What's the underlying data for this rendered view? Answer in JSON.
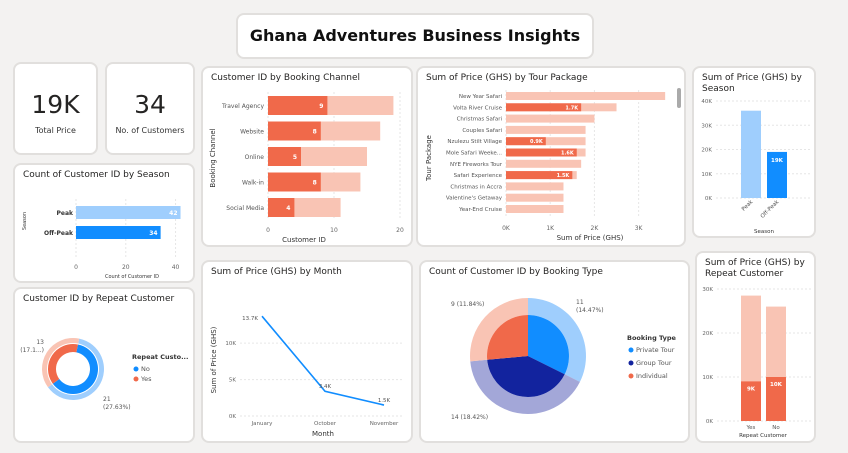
{
  "header": {
    "title": "Ghana Adventures Business Insights"
  },
  "kpis": [
    {
      "value": "19K",
      "label": "Total Price"
    },
    {
      "value": "34",
      "label": "No. of Customers"
    }
  ],
  "colors": {
    "orange": "#f0694a",
    "orange_light": "#f9c4b4",
    "blue": "#118dff",
    "blue_light": "#9fcefd",
    "navy": "#12239e",
    "navy_light": "#a3a7d8"
  },
  "chart_data": [
    {
      "id": "season_count",
      "type": "bar",
      "orientation": "horizontal",
      "title": "Count of Customer ID by Season",
      "categories": [
        "Peak",
        "Off-Peak"
      ],
      "values": [
        42,
        34
      ],
      "xlabel": "Count of Customer ID",
      "ylabel": "Season",
      "xlim": [
        0,
        45
      ],
      "ticks": [
        0,
        20,
        40
      ]
    },
    {
      "id": "booking_channel",
      "type": "bar",
      "orientation": "horizontal",
      "title": "Customer ID by Booking Channel",
      "categories": [
        "Travel Agency",
        "Website",
        "Online",
        "Walk-in",
        "Social Media"
      ],
      "values": [
        9,
        8,
        5,
        8,
        4
      ],
      "background_values": [
        19,
        17,
        15,
        14,
        11
      ],
      "xlabel": "Customer ID",
      "ylabel": "Booking Channel",
      "xlim": [
        0,
        20
      ],
      "ticks": [
        0,
        10,
        20
      ]
    },
    {
      "id": "tour_package",
      "type": "bar",
      "orientation": "horizontal",
      "title": "Sum of Price (GHS) by Tour Package",
      "categories": [
        "New Year Safari",
        "Volta River Cruise",
        "Christmas Safari",
        "Couples Safari",
        "Nzulezu Stilt Village",
        "Mole Safari Weeke...",
        "NYE Fireworks Tour",
        "Safari Experience",
        "Christmas in Accra",
        "Valentine's Getaway",
        "Year-End Cruise"
      ],
      "values": [
        0,
        1700,
        0,
        0,
        900,
        1600,
        0,
        1500,
        0,
        0,
        0
      ],
      "value_labels": [
        "",
        "1.7K",
        "",
        "",
        "0.9K",
        "1.6K",
        "",
        "1.5K",
        "",
        "",
        ""
      ],
      "background_values": [
        3600,
        2500,
        2000,
        1800,
        1800,
        1800,
        1700,
        1600,
        1300,
        1300,
        1300
      ],
      "xlabel": "Sum of Price (GHS)",
      "ylabel": "Tour Package",
      "xlim": [
        0,
        3800
      ],
      "ticks": [
        "0K",
        "1K",
        "2K",
        "3K"
      ]
    },
    {
      "id": "price_season",
      "type": "bar",
      "title": "Sum of Price (GHS) by Season",
      "categories": [
        "Peak",
        "Off-Peak"
      ],
      "values": [
        0,
        19000
      ],
      "value_labels": [
        "",
        "19K"
      ],
      "background_values": [
        36000,
        0
      ],
      "xlabel": "Season",
      "ylim": [
        0,
        40000
      ],
      "ticks": [
        "0K",
        "10K",
        "20K",
        "30K",
        "40K"
      ]
    },
    {
      "id": "repeat_count",
      "type": "pie",
      "title": "Customer ID by Repeat Customer",
      "legend_title": "Repeat Custo...",
      "slices": [
        {
          "label": "No",
          "value": 21,
          "text": "21",
          "pct": "(27.63%)"
        },
        {
          "label": "Yes",
          "value": 13,
          "text": "13",
          "pct": "(17.1...)"
        }
      ]
    },
    {
      "id": "price_month",
      "type": "line",
      "title": "Sum of Price (GHS) by Month",
      "x": [
        "January",
        "October",
        "November"
      ],
      "y": [
        13700,
        3400,
        1500
      ],
      "point_labels": [
        "13.7K",
        "3.4K",
        "1.5K"
      ],
      "xlabel": "Month",
      "ylabel": "Sum of Price (GHS)",
      "ylim": [
        0,
        14000
      ],
      "ticks": [
        "0K",
        "5K",
        "10K"
      ]
    },
    {
      "id": "booking_type",
      "type": "pie",
      "title": "Count of Customer ID by Booking Type",
      "legend_title": "Booking Type",
      "slices": [
        {
          "label": "Private Tour",
          "value": 11,
          "text": "11",
          "pct": "(14.47%)"
        },
        {
          "label": "Group Tour",
          "value": 14,
          "text": "14",
          "pct": "(18.42%)"
        },
        {
          "label": "Individual",
          "value": 9,
          "text": "9",
          "pct": "(11.84%)"
        }
      ]
    },
    {
      "id": "price_repeat",
      "type": "bar",
      "title": "Sum of Price (GHS) by Repeat Customer",
      "categories": [
        "Yes",
        "No"
      ],
      "values": [
        9000,
        10000
      ],
      "value_labels": [
        "9K",
        "10K"
      ],
      "background_values": [
        28500,
        26000
      ],
      "xlabel": "Repeat Customer",
      "ylim": [
        0,
        30000
      ],
      "ticks": [
        "0K",
        "10K",
        "20K",
        "30K"
      ]
    }
  ]
}
